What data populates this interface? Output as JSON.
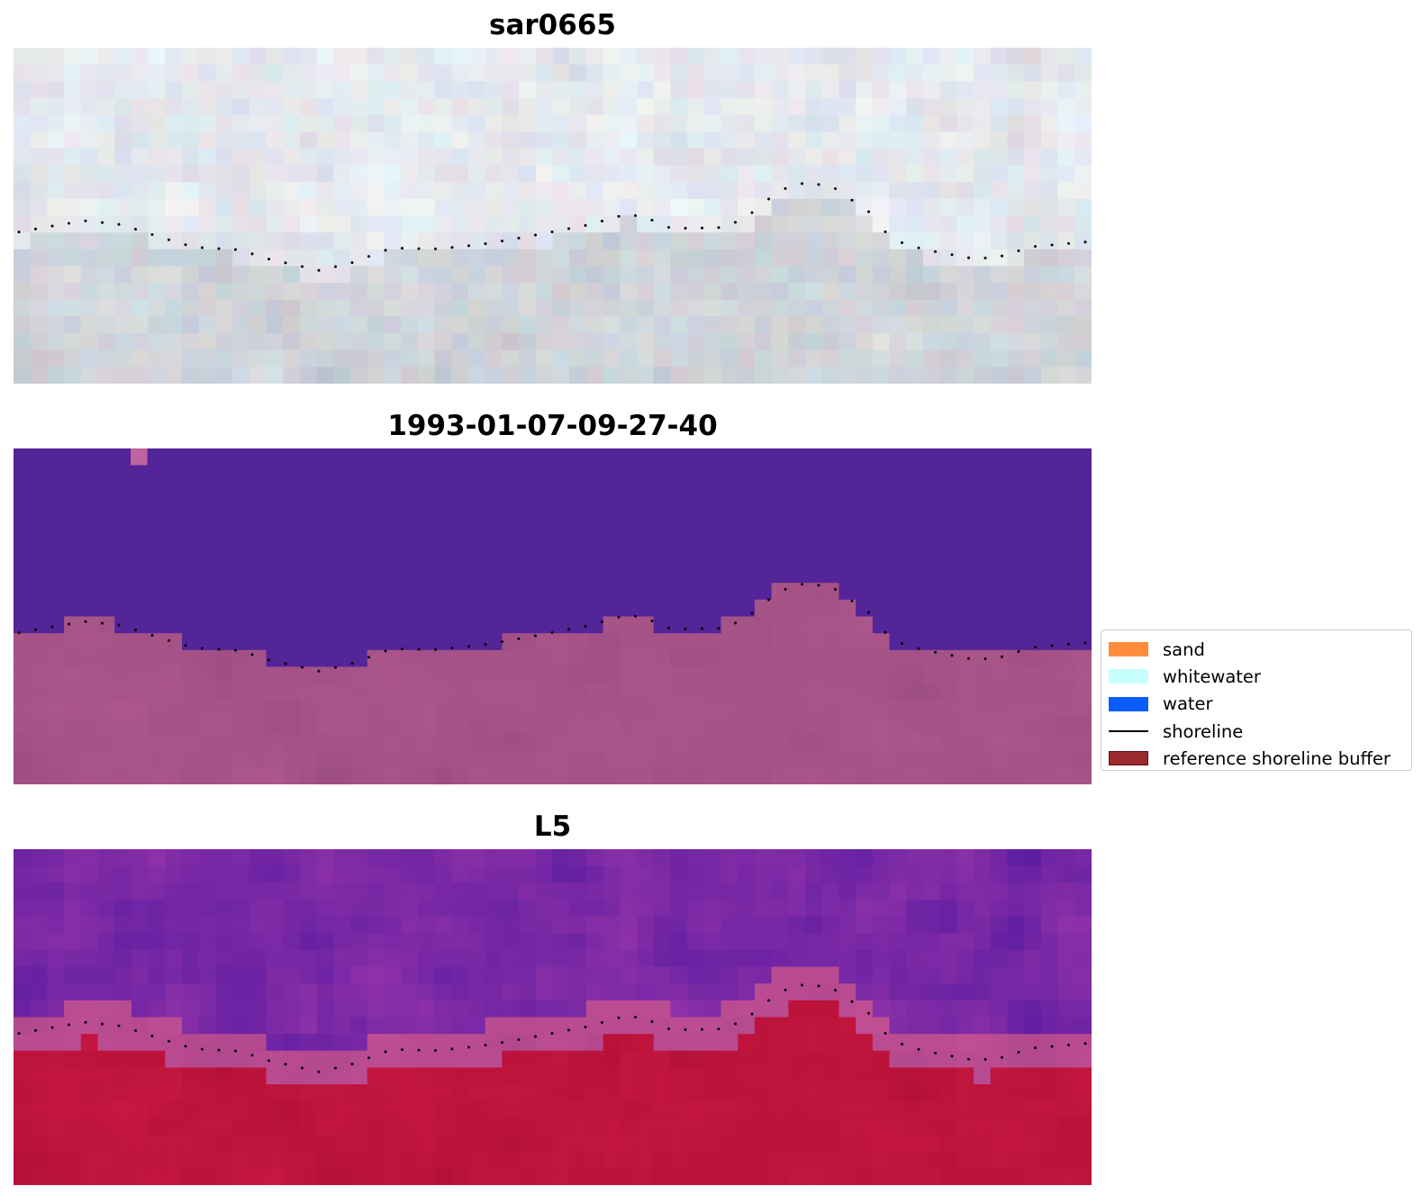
{
  "panels": [
    {
      "title": "sar0665",
      "style": "pale-grey-composite"
    },
    {
      "title": "1993-01-07-09-27-40",
      "style": "classified-purple-pink"
    },
    {
      "title": "L5",
      "style": "purple-red-index"
    }
  ],
  "legend": {
    "items": [
      {
        "label": "sand",
        "color": "#ff8c3a",
        "kind": "patch"
      },
      {
        "label": "whitewater",
        "color": "#c8ffff",
        "kind": "patch"
      },
      {
        "label": "water",
        "color": "#0a5cff",
        "kind": "patch"
      },
      {
        "label": "shoreline",
        "color": "#000000",
        "kind": "line"
      },
      {
        "label": "reference shoreline buffer",
        "color": "#9a2a2e",
        "kind": "patch"
      }
    ]
  },
  "colors": {
    "classified_water": "#542499",
    "classified_land": "#a65388",
    "shoreline_dots": "#000000"
  }
}
